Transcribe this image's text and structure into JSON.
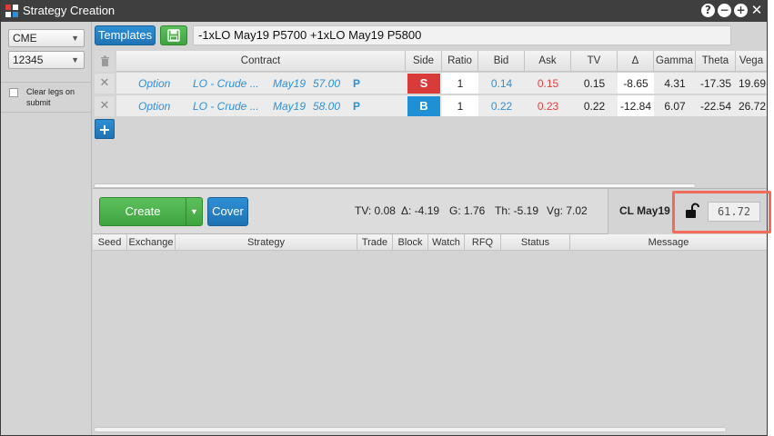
{
  "window": {
    "title": "Strategy Creation",
    "controls": {
      "help": "?",
      "minimize": "−",
      "maximize": "+",
      "close": "✕"
    }
  },
  "left_panel": {
    "exchange_select": {
      "value": "CME"
    },
    "account_select": {
      "value": "12345"
    },
    "clear_legs_label": "Clear legs on submit",
    "clear_legs_checked": false
  },
  "toolbar": {
    "templates_label": "Templates",
    "save_icon": "save-icon",
    "strategy_text": "-1xLO May19 P5700 +1xLO May19 P5800"
  },
  "legs": {
    "columns": [
      "Contract",
      "Side",
      "Ratio",
      "Bid",
      "Ask",
      "TV",
      "Δ",
      "Gamma",
      "Theta",
      "Vega"
    ],
    "rows": [
      {
        "type": "Option",
        "product": "LO - Crude ...",
        "expiry": "May19",
        "strike": "57.00",
        "pc": "P",
        "side": "S",
        "side_color": "#d93a3a",
        "ratio": "1",
        "bid": "0.14",
        "ask": "0.15",
        "tv": "0.15",
        "delta": "-8.65",
        "gamma": "4.31",
        "theta": "-17.35",
        "vega": "19.69"
      },
      {
        "type": "Option",
        "product": "LO - Crude ...",
        "expiry": "May19",
        "strike": "58.00",
        "pc": "P",
        "side": "B",
        "side_color": "#1f8fd6",
        "ratio": "1",
        "bid": "0.22",
        "ask": "0.23",
        "tv": "0.22",
        "delta": "-12.84",
        "gamma": "6.07",
        "theta": "-22.54",
        "vega": "26.72"
      }
    ]
  },
  "actions": {
    "create_label": "Create",
    "cover_label": "Cover",
    "stats": {
      "tv": "TV: 0.08",
      "delta": "Δ: -4.19",
      "gamma": "G: 1.76",
      "theta": "Th: -5.19",
      "vega": "Vg: 7.02"
    },
    "underlying_label": "CL May19",
    "underlying_price": "61.72",
    "highlight_color": "#f26b5b"
  },
  "orders": {
    "columns": [
      "Seed",
      "Exchange",
      "Strategy",
      "Trade",
      "Block",
      "Watch",
      "RFQ",
      "Status",
      "Message"
    ]
  }
}
